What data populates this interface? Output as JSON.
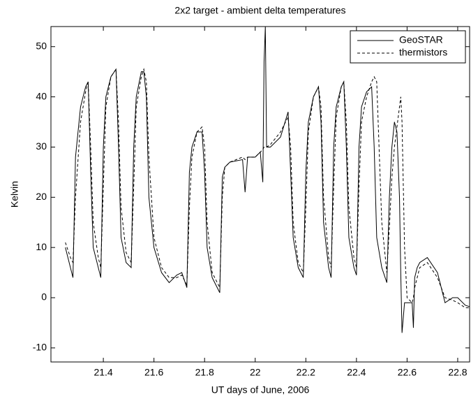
{
  "chart_data": {
    "type": "line",
    "title": "2x2 target - ambient delta temperatures",
    "xlabel": "UT days of June, 2006",
    "ylabel": "Kelvin",
    "x": [
      21.25,
      21.27,
      21.28,
      21.29,
      21.31,
      21.33,
      21.34,
      21.35,
      21.36,
      21.38,
      21.39,
      21.4,
      21.41,
      21.43,
      21.45,
      21.46,
      21.47,
      21.49,
      21.51,
      21.52,
      21.53,
      21.55,
      21.56,
      21.57,
      21.58,
      21.6,
      21.63,
      21.66,
      21.69,
      21.71,
      21.73,
      21.74,
      21.75,
      21.77,
      21.79,
      21.8,
      21.81,
      21.83,
      21.86,
      21.87,
      21.88,
      21.9,
      21.95,
      21.96,
      21.97,
      22.0,
      22.02,
      22.03,
      22.035,
      22.04,
      22.045,
      22.06,
      22.1,
      22.13,
      22.14,
      22.15,
      22.17,
      22.19,
      22.2,
      22.21,
      22.23,
      22.25,
      22.26,
      22.27,
      22.29,
      22.3,
      22.31,
      22.32,
      22.34,
      22.35,
      22.36,
      22.37,
      22.39,
      22.4,
      22.41,
      22.42,
      22.44,
      22.46,
      22.47,
      22.48,
      22.5,
      22.52,
      22.53,
      22.54,
      22.55,
      22.56,
      22.57,
      22.575,
      22.58,
      22.59,
      22.6,
      22.62,
      22.625,
      22.63,
      22.64,
      22.65,
      22.68,
      22.72,
      22.75,
      22.78,
      22.8,
      22.83,
      22.86
    ],
    "series": [
      {
        "name": "GeoSTAR",
        "color": "#000000",
        "style": "solid",
        "values": [
          10,
          6,
          4,
          28,
          38,
          42,
          43,
          25,
          10,
          6,
          4,
          30,
          40,
          44,
          45.5,
          30,
          12,
          7,
          6,
          30,
          40,
          45,
          45,
          40,
          20,
          10,
          5,
          3,
          4.5,
          5,
          2,
          25,
          30,
          33,
          33,
          25,
          10,
          4,
          1,
          24,
          26,
          27,
          27.5,
          21,
          28,
          28,
          29,
          23,
          47,
          54,
          30,
          30,
          32,
          37,
          25,
          12,
          6,
          4,
          25,
          35,
          40,
          42,
          35,
          15,
          6,
          4,
          30,
          38,
          42,
          43,
          30,
          12,
          6,
          4.5,
          30,
          38,
          41,
          42,
          30,
          12,
          6,
          3,
          20,
          30,
          35,
          33,
          20,
          5,
          -7,
          -1,
          -1,
          -1,
          -6,
          4,
          6,
          7,
          8,
          5,
          -1,
          0,
          0,
          -1.5,
          -2
        ]
      },
      {
        "name": "thermistors",
        "color": "#000000",
        "style": "dashed",
        "values": [
          11,
          8,
          7,
          20,
          35,
          41,
          43,
          30,
          15,
          8,
          6,
          22,
          38,
          44,
          45.5,
          35,
          18,
          9,
          7,
          22,
          38,
          44,
          45.5,
          43,
          28,
          12,
          6,
          4,
          4,
          4.5,
          2.5,
          18,
          28,
          33,
          34,
          30,
          15,
          5,
          2,
          20,
          26,
          27,
          28,
          27.5,
          28,
          28,
          29,
          29.5,
          30,
          30,
          30,
          30.5,
          33,
          36,
          30,
          15,
          7,
          5,
          18,
          33,
          40,
          42,
          38,
          20,
          8,
          6,
          22,
          36,
          42,
          43,
          35,
          18,
          8,
          6,
          22,
          35,
          40,
          43,
          44,
          43,
          15,
          5,
          14,
          24,
          30,
          34,
          38,
          40,
          35,
          10,
          0,
          -1,
          0,
          2,
          4,
          6,
          7,
          4,
          0,
          -0.5,
          -1,
          -2,
          -2
        ]
      }
    ],
    "xlim": [
      21.193,
      22.847
    ],
    "ylim": [
      -12.8,
      54
    ],
    "xticks": [
      21.4,
      21.6,
      21.8,
      22,
      22.2,
      22.4,
      22.6,
      22.8
    ],
    "yticks": [
      -10,
      0,
      10,
      20,
      30,
      40,
      50
    ],
    "grid": false,
    "legend": "upper right"
  }
}
